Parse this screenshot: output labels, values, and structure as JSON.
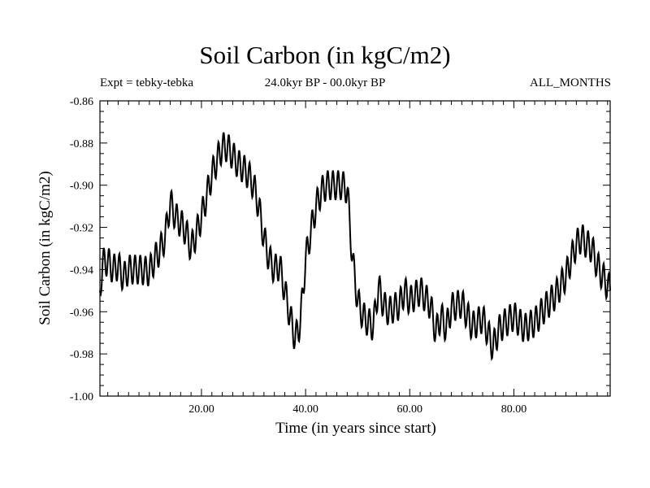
{
  "chart_data": {
    "type": "line",
    "title": "Soil Carbon (in kgC/m2)",
    "subtitle_left": "Expt = tebky-tebka",
    "subtitle_center": "24.0kyr BP - 00.0kyr BP",
    "subtitle_right": "ALL_MONTHS",
    "xlabel": "Time (in years since start)",
    "ylabel": "Soil Carbon (in kgC/m2)",
    "xlim": [
      0.5,
      98.5
    ],
    "ylim": [
      -1.0,
      -0.86
    ],
    "xticks": [
      20,
      40,
      60,
      80
    ],
    "xtick_labels": [
      "20.00",
      "40.00",
      "60.00",
      "80.00"
    ],
    "yticks": [
      -0.86,
      -0.88,
      -0.9,
      -0.92,
      -0.94,
      -0.96,
      -0.98,
      -1.0
    ],
    "ytick_labels": [
      "-0.86",
      "-0.88",
      "-0.90",
      "-0.92",
      "-0.94",
      "-0.96",
      "-0.98",
      "-1.00"
    ],
    "series": [
      {
        "name": "Soil Carbon",
        "seasonal_amplitude": 0.007,
        "seasonal_period_years": 1.0,
        "trend": {
          "x": [
            0.5,
            1,
            2,
            3,
            4,
            5,
            6,
            8,
            10,
            11,
            12,
            13,
            14,
            15,
            16,
            17,
            18,
            19,
            20,
            21,
            22,
            23,
            24,
            25,
            26,
            27,
            28,
            29,
            30,
            31,
            32,
            33,
            34,
            35,
            36,
            37,
            38,
            39,
            40,
            41,
            42,
            43,
            44,
            45,
            46,
            47,
            48,
            49,
            50,
            51,
            52,
            53,
            54,
            55,
            56,
            57,
            58,
            59,
            60,
            62,
            64,
            65,
            66,
            67,
            68,
            70,
            72,
            74,
            75,
            76,
            77,
            78,
            80,
            82,
            84,
            86,
            88,
            90,
            91,
            92,
            93,
            94,
            95,
            96,
            97,
            98.5
          ],
          "y": [
            -0.95,
            -0.937,
            -0.936,
            -0.94,
            -0.938,
            -0.944,
            -0.94,
            -0.94,
            -0.941,
            -0.935,
            -0.931,
            -0.925,
            -0.908,
            -0.915,
            -0.918,
            -0.922,
            -0.93,
            -0.923,
            -0.915,
            -0.905,
            -0.895,
            -0.888,
            -0.882,
            -0.882,
            -0.886,
            -0.89,
            -0.892,
            -0.895,
            -0.9,
            -0.91,
            -0.925,
            -0.935,
            -0.94,
            -0.938,
            -0.95,
            -0.962,
            -0.973,
            -0.965,
            -0.935,
            -0.922,
            -0.91,
            -0.903,
            -0.9,
            -0.9,
            -0.9,
            -0.9,
            -0.902,
            -0.935,
            -0.955,
            -0.962,
            -0.965,
            -0.967,
            -0.948,
            -0.957,
            -0.96,
            -0.958,
            -0.957,
            -0.95,
            -0.955,
            -0.95,
            -0.957,
            -0.97,
            -0.962,
            -0.968,
            -0.958,
            -0.956,
            -0.967,
            -0.963,
            -0.97,
            -0.977,
            -0.969,
            -0.966,
            -0.962,
            -0.968,
            -0.965,
            -0.958,
            -0.952,
            -0.943,
            -0.935,
            -0.928,
            -0.925,
            -0.928,
            -0.93,
            -0.938,
            -0.943,
            -0.95
          ]
        }
      }
    ]
  }
}
